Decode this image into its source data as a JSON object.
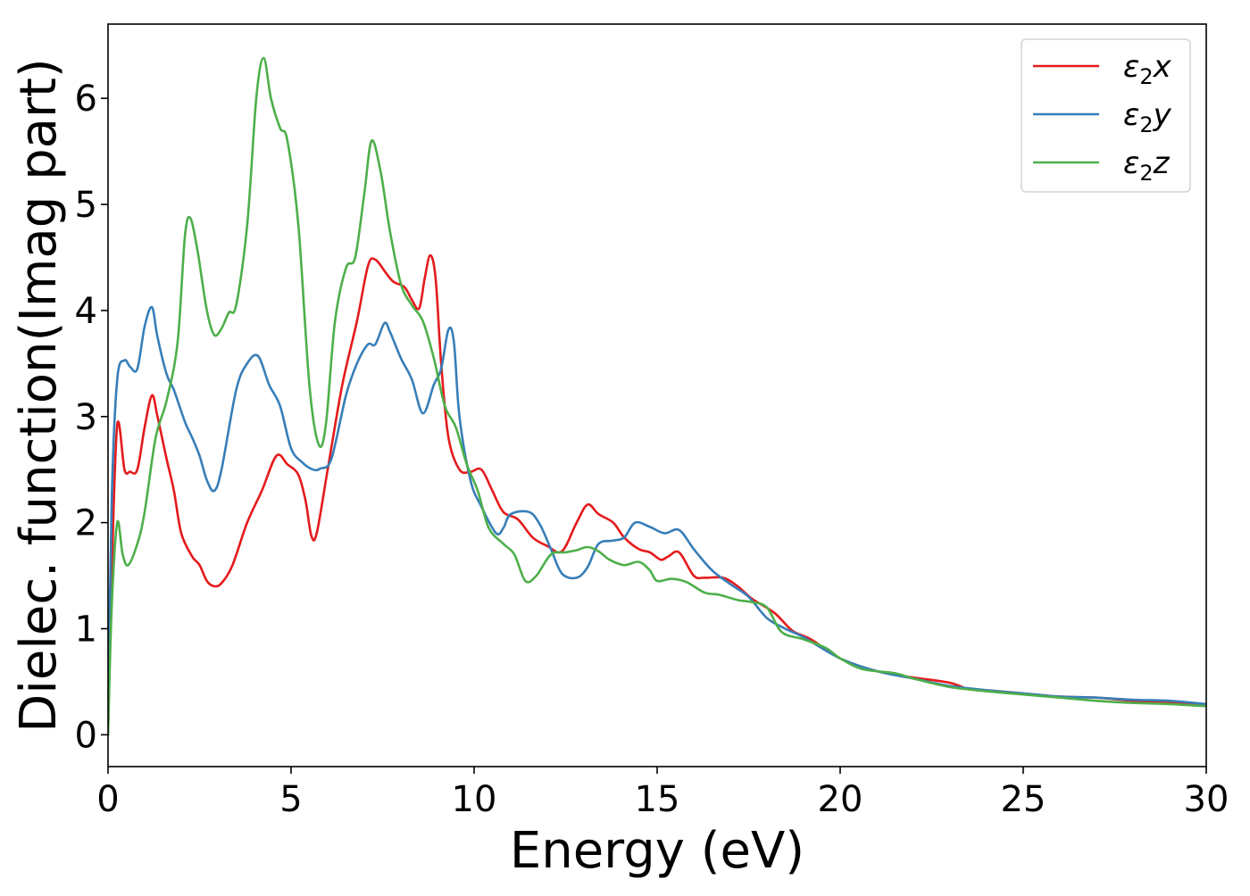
{
  "chart_data": {
    "type": "line",
    "title": "",
    "xlabel": "Energy (eV)",
    "ylabel": "Dielec. function(Imag part)",
    "xlim": [
      0,
      30
    ],
    "ylim": [
      -0.3,
      6.7
    ],
    "xticks": [
      0,
      5,
      10,
      15,
      20,
      25,
      30
    ],
    "yticks": [
      0,
      1,
      2,
      3,
      4,
      5,
      6
    ],
    "grid": false,
    "legend_position": "top-right",
    "series": [
      {
        "name": "ε2x",
        "legend_base": "ε",
        "legend_sub": "2",
        "legend_suffix": "x",
        "color": "#e41a1c",
        "points": [
          [
            0,
            0
          ],
          [
            0.1,
            1.5
          ],
          [
            0.25,
            2.92
          ],
          [
            0.45,
            2.5
          ],
          [
            0.6,
            2.48
          ],
          [
            0.8,
            2.5
          ],
          [
            1.0,
            2.9
          ],
          [
            1.2,
            3.2
          ],
          [
            1.35,
            3.0
          ],
          [
            1.6,
            2.6
          ],
          [
            1.8,
            2.3
          ],
          [
            2.0,
            1.9
          ],
          [
            2.3,
            1.68
          ],
          [
            2.5,
            1.6
          ],
          [
            2.7,
            1.45
          ],
          [
            2.9,
            1.4
          ],
          [
            3.1,
            1.43
          ],
          [
            3.4,
            1.6
          ],
          [
            3.8,
            2.0
          ],
          [
            4.2,
            2.3
          ],
          [
            4.6,
            2.63
          ],
          [
            4.9,
            2.55
          ],
          [
            5.2,
            2.45
          ],
          [
            5.4,
            2.2
          ],
          [
            5.55,
            1.88
          ],
          [
            5.7,
            1.9
          ],
          [
            6.0,
            2.5
          ],
          [
            6.4,
            3.3
          ],
          [
            6.8,
            3.9
          ],
          [
            7.1,
            4.42
          ],
          [
            7.3,
            4.48
          ],
          [
            7.6,
            4.35
          ],
          [
            7.8,
            4.27
          ],
          [
            8.1,
            4.22
          ],
          [
            8.3,
            4.1
          ],
          [
            8.5,
            4.02
          ],
          [
            8.65,
            4.3
          ],
          [
            8.8,
            4.52
          ],
          [
            8.95,
            4.3
          ],
          [
            9.1,
            3.5
          ],
          [
            9.3,
            2.8
          ],
          [
            9.6,
            2.5
          ],
          [
            9.9,
            2.48
          ],
          [
            10.2,
            2.5
          ],
          [
            10.5,
            2.3
          ],
          [
            10.8,
            2.1
          ],
          [
            11.2,
            2.03
          ],
          [
            11.6,
            1.86
          ],
          [
            12.0,
            1.78
          ],
          [
            12.4,
            1.73
          ],
          [
            12.8,
            2.0
          ],
          [
            13.1,
            2.17
          ],
          [
            13.4,
            2.08
          ],
          [
            13.8,
            2.0
          ],
          [
            14.1,
            1.86
          ],
          [
            14.5,
            1.75
          ],
          [
            14.8,
            1.72
          ],
          [
            15.1,
            1.65
          ],
          [
            15.3,
            1.68
          ],
          [
            15.6,
            1.72
          ],
          [
            16.0,
            1.5
          ],
          [
            16.3,
            1.48
          ],
          [
            16.8,
            1.48
          ],
          [
            17.2,
            1.4
          ],
          [
            17.6,
            1.28
          ],
          [
            18.2,
            1.15
          ],
          [
            18.7,
            0.98
          ],
          [
            19.2,
            0.9
          ],
          [
            20.0,
            0.72
          ],
          [
            21.0,
            0.6
          ],
          [
            22.0,
            0.54
          ],
          [
            23.0,
            0.49
          ],
          [
            23.5,
            0.43
          ],
          [
            24.0,
            0.42
          ],
          [
            25.0,
            0.39
          ],
          [
            26.0,
            0.36
          ],
          [
            27.0,
            0.35
          ],
          [
            28.0,
            0.32
          ],
          [
            29.0,
            0.3
          ],
          [
            30.0,
            0.28
          ]
        ]
      },
      {
        "name": "ε2y",
        "legend_base": "ε",
        "legend_sub": "2",
        "legend_suffix": "y",
        "color": "#377eb8",
        "points": [
          [
            0,
            0
          ],
          [
            0.1,
            2.2
          ],
          [
            0.25,
            3.35
          ],
          [
            0.45,
            3.53
          ],
          [
            0.6,
            3.47
          ],
          [
            0.8,
            3.45
          ],
          [
            1.0,
            3.85
          ],
          [
            1.2,
            4.03
          ],
          [
            1.35,
            3.75
          ],
          [
            1.6,
            3.4
          ],
          [
            1.8,
            3.25
          ],
          [
            2.1,
            2.95
          ],
          [
            2.3,
            2.8
          ],
          [
            2.5,
            2.63
          ],
          [
            2.7,
            2.4
          ],
          [
            2.9,
            2.3
          ],
          [
            3.1,
            2.5
          ],
          [
            3.5,
            3.25
          ],
          [
            3.8,
            3.5
          ],
          [
            4.1,
            3.57
          ],
          [
            4.4,
            3.3
          ],
          [
            4.7,
            3.1
          ],
          [
            5.0,
            2.7
          ],
          [
            5.3,
            2.57
          ],
          [
            5.6,
            2.5
          ],
          [
            5.8,
            2.51
          ],
          [
            6.1,
            2.6
          ],
          [
            6.5,
            3.2
          ],
          [
            6.8,
            3.5
          ],
          [
            7.1,
            3.68
          ],
          [
            7.3,
            3.68
          ],
          [
            7.55,
            3.88
          ],
          [
            7.7,
            3.8
          ],
          [
            8.0,
            3.55
          ],
          [
            8.3,
            3.35
          ],
          [
            8.6,
            3.03
          ],
          [
            8.9,
            3.3
          ],
          [
            9.1,
            3.45
          ],
          [
            9.3,
            3.82
          ],
          [
            9.45,
            3.7
          ],
          [
            9.6,
            3.0
          ],
          [
            9.9,
            2.4
          ],
          [
            10.2,
            2.15
          ],
          [
            10.6,
            1.9
          ],
          [
            10.8,
            1.95
          ],
          [
            11.0,
            2.08
          ],
          [
            11.5,
            2.1
          ],
          [
            11.8,
            1.98
          ],
          [
            12.1,
            1.75
          ],
          [
            12.4,
            1.52
          ],
          [
            12.8,
            1.48
          ],
          [
            13.1,
            1.58
          ],
          [
            13.4,
            1.8
          ],
          [
            13.8,
            1.83
          ],
          [
            14.1,
            1.86
          ],
          [
            14.4,
            2.0
          ],
          [
            14.8,
            1.96
          ],
          [
            15.2,
            1.9
          ],
          [
            15.6,
            1.93
          ],
          [
            16.0,
            1.75
          ],
          [
            16.5,
            1.55
          ],
          [
            17.0,
            1.42
          ],
          [
            17.5,
            1.3
          ],
          [
            18.0,
            1.1
          ],
          [
            18.5,
            1.0
          ],
          [
            19.0,
            0.92
          ],
          [
            20.0,
            0.72
          ],
          [
            21.0,
            0.6
          ],
          [
            22.0,
            0.53
          ],
          [
            23.0,
            0.46
          ],
          [
            24.0,
            0.42
          ],
          [
            25.0,
            0.39
          ],
          [
            26.0,
            0.36
          ],
          [
            27.0,
            0.35
          ],
          [
            28.0,
            0.33
          ],
          [
            29.0,
            0.32
          ],
          [
            30.0,
            0.29
          ]
        ]
      },
      {
        "name": "ε2z",
        "legend_base": "ε",
        "legend_sub": "2",
        "legend_suffix": "z",
        "color": "#4daf4a",
        "points": [
          [
            0,
            0
          ],
          [
            0.1,
            1.2
          ],
          [
            0.25,
            2.0
          ],
          [
            0.4,
            1.7
          ],
          [
            0.55,
            1.6
          ],
          [
            0.8,
            1.8
          ],
          [
            1.0,
            2.1
          ],
          [
            1.3,
            2.8
          ],
          [
            1.6,
            3.15
          ],
          [
            1.9,
            3.7
          ],
          [
            2.1,
            4.7
          ],
          [
            2.25,
            4.87
          ],
          [
            2.45,
            4.55
          ],
          [
            2.7,
            4.0
          ],
          [
            2.9,
            3.77
          ],
          [
            3.1,
            3.83
          ],
          [
            3.3,
            3.98
          ],
          [
            3.5,
            4.05
          ],
          [
            3.8,
            4.8
          ],
          [
            4.05,
            6.0
          ],
          [
            4.25,
            6.38
          ],
          [
            4.45,
            6.0
          ],
          [
            4.7,
            5.72
          ],
          [
            4.9,
            5.6
          ],
          [
            5.2,
            4.8
          ],
          [
            5.5,
            3.3
          ],
          [
            5.75,
            2.74
          ],
          [
            5.95,
            2.92
          ],
          [
            6.2,
            3.9
          ],
          [
            6.5,
            4.4
          ],
          [
            6.75,
            4.5
          ],
          [
            7.0,
            5.1
          ],
          [
            7.2,
            5.6
          ],
          [
            7.45,
            5.3
          ],
          [
            7.7,
            4.75
          ],
          [
            8.0,
            4.25
          ],
          [
            8.3,
            4.05
          ],
          [
            8.6,
            3.9
          ],
          [
            8.9,
            3.55
          ],
          [
            9.2,
            3.1
          ],
          [
            9.5,
            2.9
          ],
          [
            9.8,
            2.55
          ],
          [
            10.1,
            2.3
          ],
          [
            10.4,
            1.95
          ],
          [
            10.8,
            1.8
          ],
          [
            11.1,
            1.7
          ],
          [
            11.4,
            1.45
          ],
          [
            11.7,
            1.5
          ],
          [
            12.1,
            1.7
          ],
          [
            12.5,
            1.72
          ],
          [
            12.8,
            1.74
          ],
          [
            13.1,
            1.77
          ],
          [
            13.4,
            1.73
          ],
          [
            13.7,
            1.65
          ],
          [
            14.1,
            1.6
          ],
          [
            14.5,
            1.63
          ],
          [
            14.8,
            1.55
          ],
          [
            15.0,
            1.45
          ],
          [
            15.4,
            1.47
          ],
          [
            15.8,
            1.44
          ],
          [
            16.3,
            1.34
          ],
          [
            16.7,
            1.32
          ],
          [
            17.2,
            1.27
          ],
          [
            17.6,
            1.25
          ],
          [
            18.0,
            1.2
          ],
          [
            18.4,
            0.97
          ],
          [
            19.0,
            0.9
          ],
          [
            19.6,
            0.82
          ],
          [
            20.0,
            0.72
          ],
          [
            20.6,
            0.62
          ],
          [
            21.5,
            0.58
          ],
          [
            22.0,
            0.53
          ],
          [
            23.0,
            0.45
          ],
          [
            24.0,
            0.41
          ],
          [
            25.0,
            0.38
          ],
          [
            26.0,
            0.35
          ],
          [
            27.0,
            0.32
          ],
          [
            28.0,
            0.3
          ],
          [
            29.0,
            0.29
          ],
          [
            30.0,
            0.27
          ]
        ]
      }
    ]
  }
}
